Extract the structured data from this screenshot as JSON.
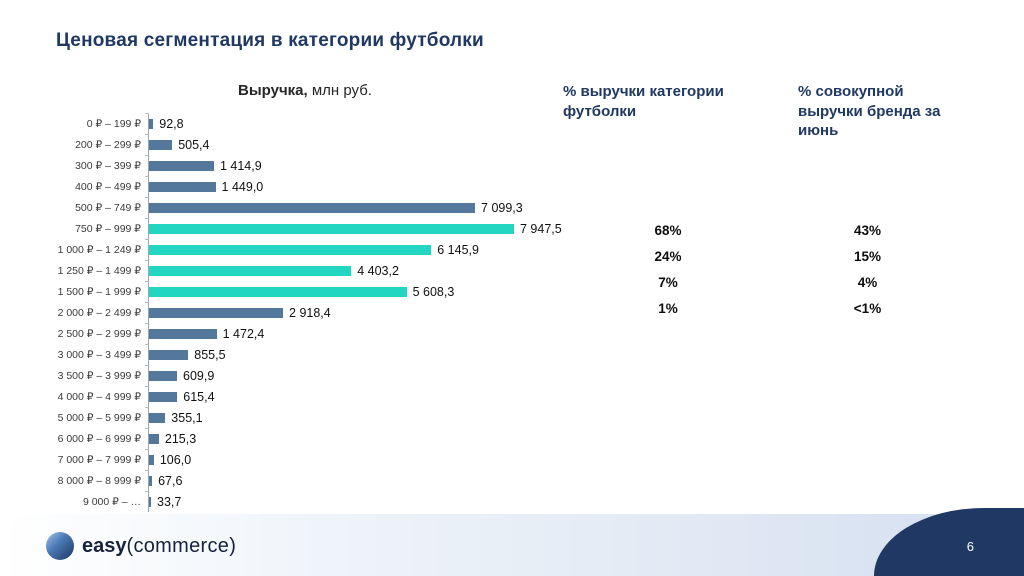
{
  "slide": {
    "title": "Ценовая сегментация в категории футболки",
    "page_number": "6"
  },
  "chart_data": {
    "type": "bar",
    "orientation": "horizontal",
    "title": "Выручка, млн руб.",
    "title_bold": "Выручка,",
    "title_rest": " млн руб.",
    "categories": [
      "0 ₽ – 199 ₽",
      "200 ₽ – 299 ₽",
      "300 ₽ – 399 ₽",
      "400 ₽ – 499 ₽",
      "500 ₽ – 749 ₽",
      "750 ₽ – 999 ₽",
      "1 000 ₽ – 1 249 ₽",
      "1 250 ₽ – 1 499 ₽",
      "1 500 ₽ – 1 999 ₽",
      "2 000 ₽ – 2 499 ₽",
      "2 500 ₽ – 2 999 ₽",
      "3 000 ₽ – 3 499 ₽",
      "3 500 ₽ – 3 999 ₽",
      "4 000 ₽ – 4 999 ₽",
      "5 000 ₽ – 5 999 ₽",
      "6 000 ₽ – 6 999 ₽",
      "7 000 ₽ – 7 999 ₽",
      "8 000 ₽ – 8 999 ₽",
      "9 000 ₽ – …"
    ],
    "values": [
      92.8,
      505.4,
      1414.9,
      1449.0,
      7099.3,
      7947.5,
      6145.9,
      4403.2,
      5608.3,
      2918.4,
      1472.4,
      855.5,
      609.9,
      615.4,
      355.1,
      215.3,
      106.0,
      67.6,
      33.7
    ],
    "value_labels": [
      "92,8",
      "505,4",
      "1 414,9",
      "1 449,0",
      "7 099,3",
      "7 947,5",
      "6 145,9",
      "4 403,2",
      "5 608,3",
      "2 918,4",
      "1 472,4",
      "855,5",
      "609,9",
      "615,4",
      "355,1",
      "215,3",
      "106,0",
      "67,6",
      "33,7"
    ],
    "colors": {
      "default": "#54789C",
      "highlight": "#23D6C1"
    },
    "highlight_indices": [
      5,
      6,
      7,
      8
    ],
    "xlim": [
      0,
      7947.5
    ],
    "grid": false,
    "legend": false
  },
  "percent_table": {
    "headers": [
      {
        "label": "% выручки категории футболки"
      },
      {
        "label": "% совокупной выручки бренда за июнь"
      }
    ],
    "rows": [
      {
        "category": "68%",
        "brand": "43%"
      },
      {
        "category": "24%",
        "brand": "15%"
      },
      {
        "category": "7%",
        "brand": "4%"
      },
      {
        "category": "1%",
        "brand": "<1%"
      }
    ]
  },
  "footer": {
    "logo_easy": "easy",
    "logo_commerce": "(commerce)",
    "page_number": "6"
  }
}
